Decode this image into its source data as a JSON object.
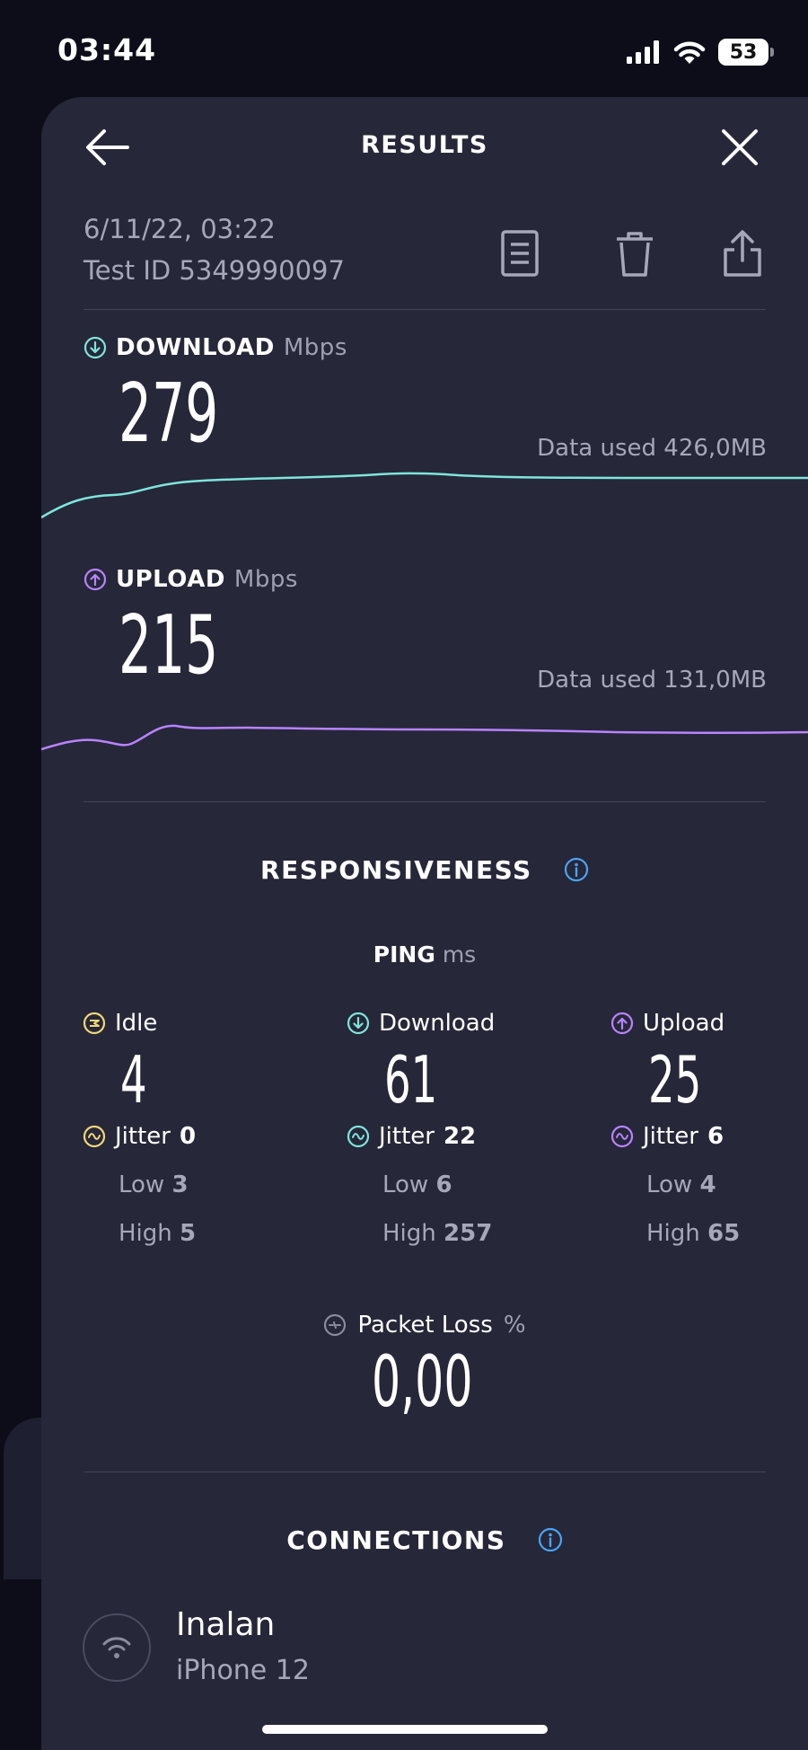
{
  "status_bar": {
    "time": "03:44",
    "battery": "53"
  },
  "header": {
    "title": "RESULTS"
  },
  "meta": {
    "date": "6/11/22, 03:22",
    "test_id": "Test ID 5349990097"
  },
  "download": {
    "label": "DOWNLOAD",
    "unit": "Mbps",
    "value": "279",
    "data_used": "Data used 426,0MB"
  },
  "upload": {
    "label": "UPLOAD",
    "unit": "Mbps",
    "value": "215",
    "data_used": "Data used 131,0MB"
  },
  "responsiveness": {
    "title": "RESPONSIVENESS",
    "ping_label": "PING",
    "ping_unit": "ms",
    "columns": [
      {
        "label": "Idle",
        "value": "4",
        "jitter_label": "Jitter",
        "jitter": "0",
        "low_label": "Low",
        "low": "3",
        "high_label": "High",
        "high": "5",
        "color": "#f0d77a"
      },
      {
        "label": "Download",
        "value": "61",
        "jitter_label": "Jitter",
        "jitter": "22",
        "low_label": "Low",
        "low": "6",
        "high_label": "High",
        "high": "257",
        "color": "#7ee5dc"
      },
      {
        "label": "Upload",
        "value": "25",
        "jitter_label": "Jitter",
        "jitter": "6",
        "low_label": "Low",
        "low": "4",
        "high_label": "High",
        "high": "65",
        "color": "#b983ff"
      }
    ],
    "packet_loss_label": "Packet Loss",
    "packet_loss_unit": "%",
    "packet_loss_value": "0,00"
  },
  "connections": {
    "title": "CONNECTIONS",
    "name": "Inalan",
    "device": "iPhone 12"
  },
  "colors": {
    "download": "#7ee5dc",
    "upload": "#b983ff",
    "idle": "#f0d77a",
    "info": "#4ba3f5"
  },
  "icons": {
    "status": [
      "cellular-signal-icon",
      "wifi-icon",
      "battery-icon"
    ],
    "header": [
      "back-arrow-icon",
      "close-icon"
    ],
    "actions": [
      "document-icon",
      "trash-icon",
      "share-icon"
    ]
  }
}
